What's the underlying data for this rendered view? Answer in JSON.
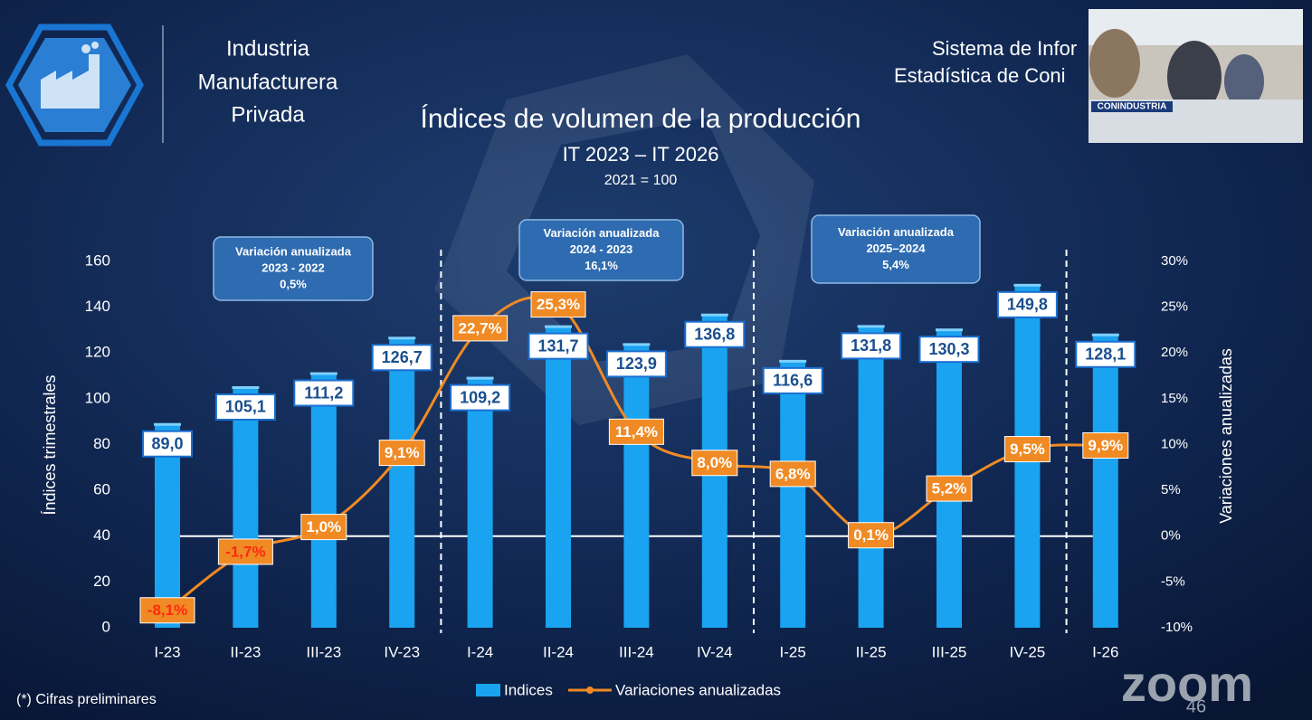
{
  "header": {
    "lines": [
      "Industria",
      "Manufacturera",
      "Privada"
    ],
    "right_lines": [
      "Sistema de Infor",
      "Estadística de Coni"
    ]
  },
  "webcam": {
    "label": "CONINDUSTRIA"
  },
  "footnote": "(*) Cifras preliminares",
  "zoom": {
    "logo": "zoom",
    "page": "46"
  },
  "chart_data": {
    "type": "bar",
    "title": "Índices de volumen de la producción",
    "subtitle": "IT 2023 – IT 2026",
    "base_note": "2021 = 100",
    "y_label": "Índices trimestrales",
    "y2_label": "Variaciones anualizadas",
    "categories": [
      "I-23",
      "II-23",
      "III-23",
      "IV-23",
      "I-24",
      "II-24",
      "III-24",
      "IV-24",
      "I-25",
      "II-25",
      "III-25",
      "IV-25",
      "I-26"
    ],
    "series": [
      {
        "name": "Indices",
        "type": "bar",
        "color": "#1aa3f0",
        "values": [
          89.0,
          105.1,
          111.2,
          126.7,
          109.2,
          131.7,
          123.9,
          136.8,
          116.6,
          131.8,
          130.3,
          149.8,
          128.1
        ],
        "value_labels": [
          "89,0",
          "105,1",
          "111,2",
          "126,7",
          "109,2",
          "131,7",
          "123,9",
          "136,8",
          "116,6",
          "131,8",
          "130,3",
          "149,8",
          "128,1"
        ]
      },
      {
        "name": "Variaciones anualizadas",
        "type": "line",
        "axis": "y2",
        "color": "#f08a24",
        "values": [
          -8.1,
          -1.7,
          1.0,
          9.1,
          22.7,
          25.3,
          11.4,
          8.0,
          6.8,
          0.1,
          5.2,
          9.5,
          9.9
        ],
        "value_labels": [
          "-8,1%",
          "-1,7%",
          "1,0%",
          "9,1%",
          "22,7%",
          "25,3%",
          "11,4%",
          "8,0%",
          "6,8%",
          "0,1%",
          "5,2%",
          "9,5%",
          "9,9%"
        ]
      }
    ],
    "ylim": [
      0,
      160
    ],
    "yticks": [
      0,
      20,
      40,
      60,
      80,
      100,
      120,
      140,
      160
    ],
    "y2lim": [
      -10,
      30
    ],
    "y2ticks": [
      {
        "value": -10,
        "label": "-10%"
      },
      {
        "value": -5,
        "label": "-5%"
      },
      {
        "value": 0,
        "label": "0%"
      },
      {
        "value": 5,
        "label": "5%"
      },
      {
        "value": 10,
        "label": "10%"
      },
      {
        "value": 15,
        "label": "15%"
      },
      {
        "value": 20,
        "label": "20%"
      },
      {
        "value": 25,
        "label": "25%"
      },
      {
        "value": 30,
        "label": "30%"
      }
    ],
    "annotations": [
      {
        "lines": [
          "Variación anualizada",
          "2023 - 2022",
          "0,5%"
        ]
      },
      {
        "lines": [
          "Variación anualizada",
          "2024 - 2023",
          "16,1%"
        ]
      },
      {
        "lines": [
          "Variación anualizada",
          "2025–2024",
          "5,4%"
        ]
      }
    ]
  }
}
